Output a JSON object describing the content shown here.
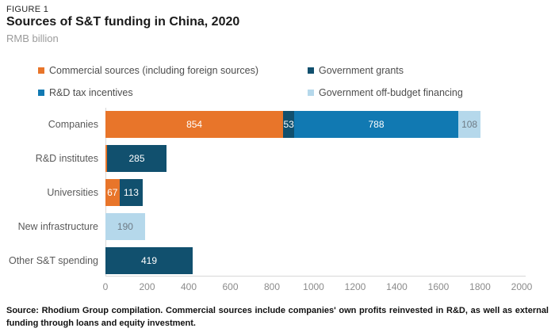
{
  "header": {
    "figure_label": "FIGURE 1",
    "title": "Sources of S&T funding in China, 2020",
    "subtitle": "RMB billion"
  },
  "legend": {
    "items": [
      {
        "label": "Commercial sources (including foreign sources)",
        "color": "#E8752A"
      },
      {
        "label": "Government grants",
        "color": "#11506E"
      },
      {
        "label": "R&D tax incentives",
        "color": "#1179B2"
      },
      {
        "label": "Government off-budget financing",
        "color": "#B5D8EB"
      }
    ]
  },
  "chart_data": {
    "type": "bar",
    "orientation": "horizontal",
    "stacked": true,
    "title": "Sources of S&T funding in China, 2020",
    "unit": "RMB billion",
    "categories": [
      "Companies",
      "R&D institutes",
      "Universities",
      "New infrastructure",
      "Other S&T spending"
    ],
    "series": [
      {
        "name": "Commercial sources (including foreign sources)",
        "color": "#E8752A",
        "label_color": "#FFFFFF",
        "values": [
          854,
          8,
          67,
          0,
          0
        ]
      },
      {
        "name": "Government grants",
        "color": "#11506E",
        "label_color": "#FFFFFF",
        "values": [
          53,
          285,
          113,
          0,
          419
        ]
      },
      {
        "name": "R&D tax incentives",
        "color": "#1179B2",
        "label_color": "#FFFFFF",
        "values": [
          788,
          0,
          0,
          0,
          0
        ]
      },
      {
        "name": "Government off-budget financing",
        "color": "#B5D8EB",
        "label_color": "#6E7B85",
        "values": [
          108,
          0,
          0,
          190,
          0
        ]
      }
    ],
    "xlim": [
      0,
      2000
    ],
    "x_ticks": [
      0,
      200,
      400,
      600,
      800,
      1000,
      1200,
      1400,
      1600,
      1800,
      2000
    ],
    "grid": false,
    "legend_position": "top",
    "min_value_for_label": 20
  },
  "footer": {
    "source": "Source: Rhodium Group compilation. Commercial sources include companies' own profits reinvested in R&D, as well as external funding through loans and equity investment."
  }
}
